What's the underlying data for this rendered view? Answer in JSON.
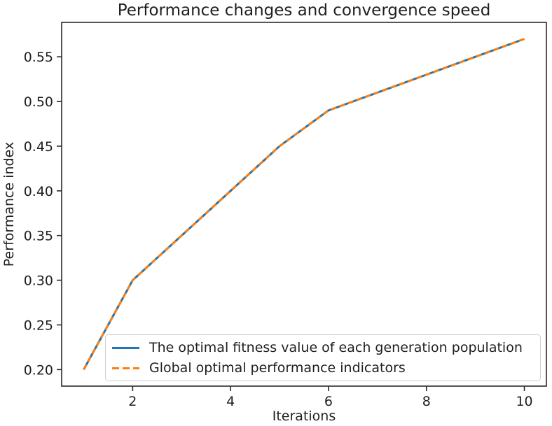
{
  "figure": {
    "background": "#ffffff",
    "text_color": "#1f1f1f",
    "axis_color": "#2b2b2b"
  },
  "chart_data": {
    "type": "line",
    "title": "Performance changes and convergence speed",
    "xlabel": "Iterations",
    "ylabel": "Performance index",
    "x": [
      1,
      2,
      3,
      4,
      5,
      6,
      7,
      8,
      9,
      10
    ],
    "series": [
      {
        "name": "The optimal fitness value of each generation population",
        "color": "#1f77b4",
        "line_style": "solid",
        "values": [
          0.2,
          0.3,
          0.35,
          0.4,
          0.45,
          0.49,
          0.51,
          0.53,
          0.55,
          0.57
        ]
      },
      {
        "name": "Global optimal performance indicators",
        "color": "#ff7f0e",
        "line_style": "dashed",
        "values": [
          0.2,
          0.3,
          0.35,
          0.4,
          0.45,
          0.49,
          0.51,
          0.53,
          0.55,
          0.57
        ]
      }
    ],
    "xticks": [
      2,
      4,
      6,
      8,
      10
    ],
    "yticks": [
      0.2,
      0.25,
      0.3,
      0.35,
      0.4,
      0.45,
      0.5,
      0.55
    ],
    "xlim": [
      0.55,
      10.45
    ],
    "ylim": [
      0.1815,
      0.5885
    ],
    "grid": false,
    "legend_position": "lower center-right, framed"
  }
}
